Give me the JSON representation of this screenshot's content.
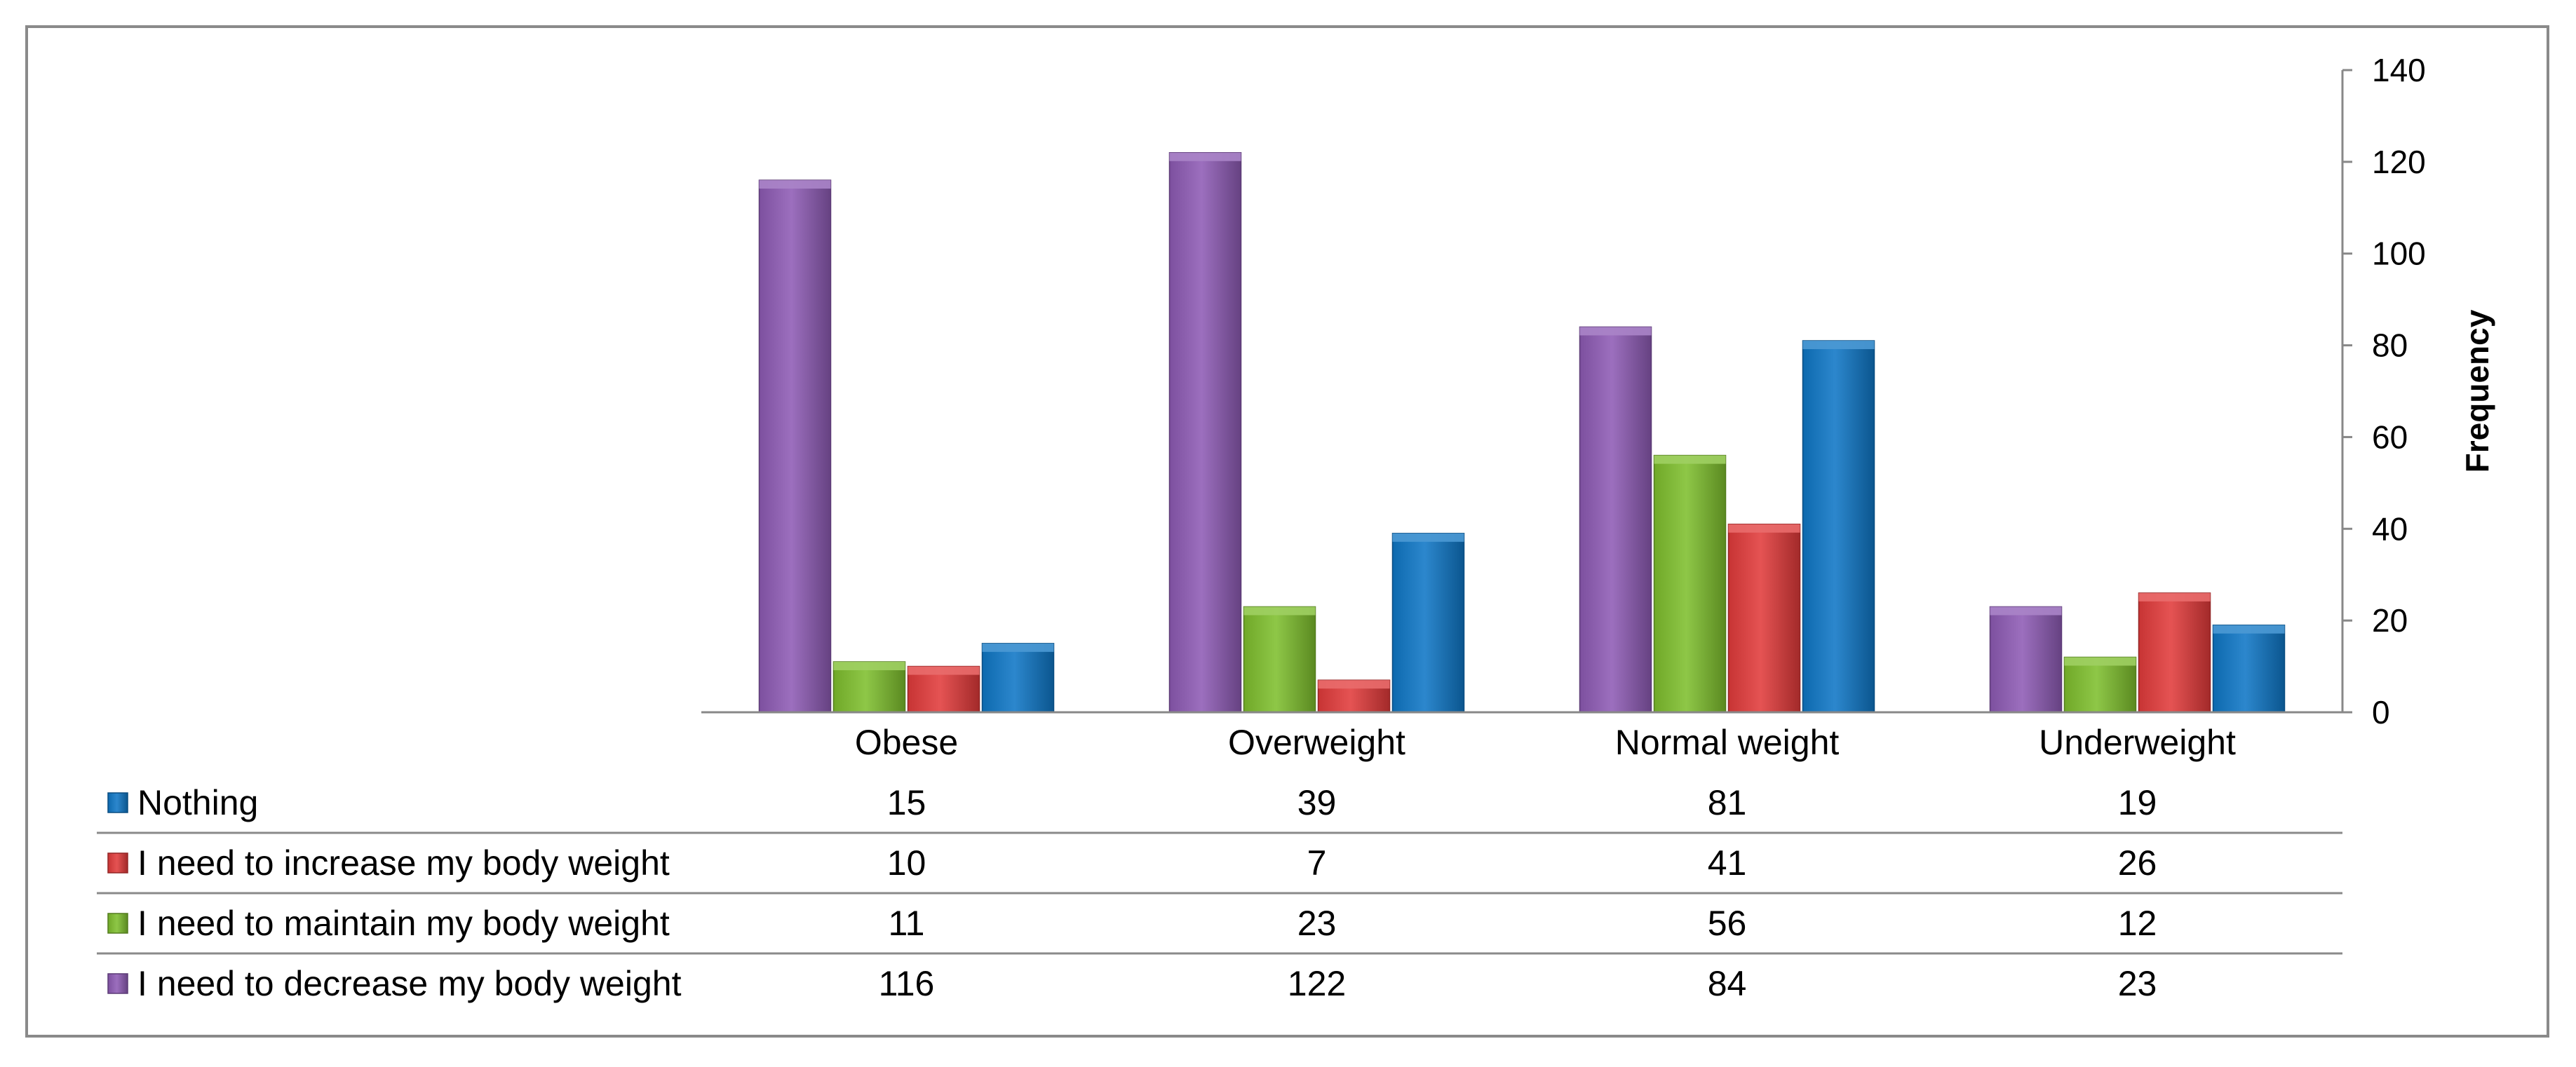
{
  "chart_data": {
    "type": "bar",
    "categories": [
      "Obese",
      "Overweight",
      "Normal weight",
      "Underweight"
    ],
    "series": [
      {
        "name": "I need to decrease my body weight",
        "values": [
          116,
          122,
          84,
          23
        ],
        "color": "#8e5bb5"
      },
      {
        "name": "I need to maintain my body weight",
        "values": [
          11,
          23,
          56,
          12
        ],
        "color": "#7fbf2e"
      },
      {
        "name": "I need to increase my body weight",
        "values": [
          10,
          7,
          41,
          26
        ],
        "color": "#e23b3b"
      },
      {
        "name": "Nothing",
        "values": [
          15,
          39,
          81,
          19
        ],
        "color": "#0f77c6"
      }
    ],
    "title": "",
    "xlabel": "",
    "ylabel": "Frequency",
    "ylim": [
      0,
      140
    ],
    "yticks": [
      0,
      20,
      40,
      60,
      80,
      100,
      120,
      140
    ],
    "y_axis_side": "right",
    "grid": false,
    "legend": "data table below chart",
    "data_table_rows": [
      "Nothing",
      "I need to increase my body weight",
      "I need to maintain my body weight",
      "I need to decrease my body weight"
    ]
  }
}
